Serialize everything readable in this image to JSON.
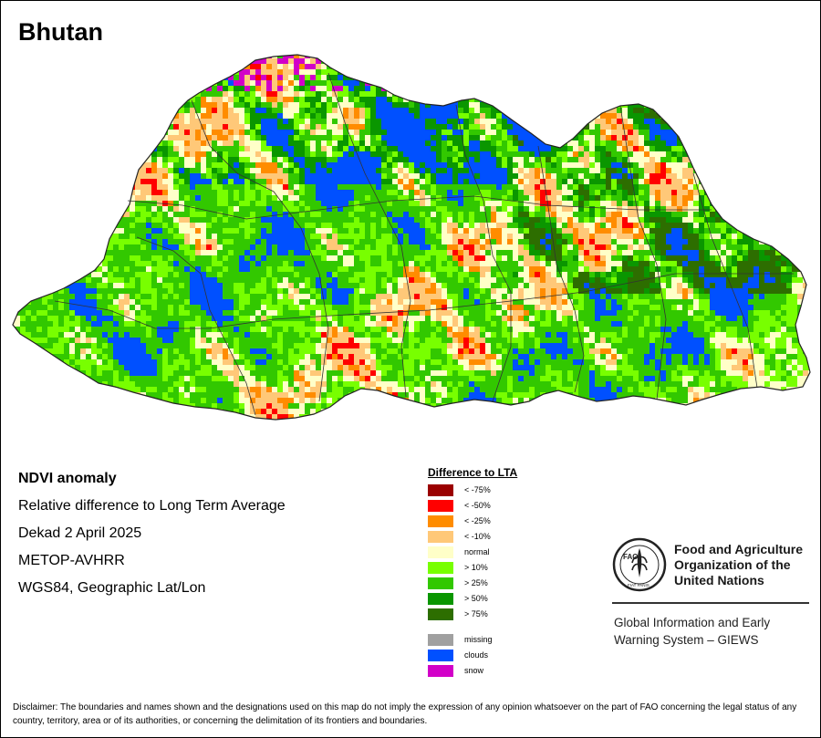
{
  "map": {
    "title": "Bhutan",
    "info": {
      "heading": "NDVI anomaly",
      "subtitle": "Relative difference to Long Term Average",
      "period": "Dekad 2 April 2025",
      "sensor": "METOP-AVHRR",
      "projection": "WGS84, Geographic Lat/Lon"
    },
    "legend": {
      "title": "Difference to LTA",
      "items": [
        {
          "label": "< -75%",
          "color": "#9b0000"
        },
        {
          "label": "< -50%",
          "color": "#ff0000"
        },
        {
          "label": "< -25%",
          "color": "#ff8c00"
        },
        {
          "label": "< -10%",
          "color": "#ffc878"
        },
        {
          "label": "normal",
          "color": "#ffffc8"
        },
        {
          "label": "> 10%",
          "color": "#78ff00"
        },
        {
          "label": "> 25%",
          "color": "#32c800"
        },
        {
          "label": "> 50%",
          "color": "#0a9600"
        },
        {
          "label": "> 75%",
          "color": "#2d6e00"
        }
      ],
      "extra_items": [
        {
          "label": "missing",
          "color": "#a0a0a0"
        },
        {
          "label": "clouds",
          "color": "#0050ff"
        },
        {
          "label": "snow",
          "color": "#d200c8"
        }
      ]
    },
    "organization": {
      "name_lines": [
        "Food and Agriculture",
        "Organization of the",
        "United Nations"
      ],
      "logo_text": "FAO",
      "logo_motto": "FIAT PANIS",
      "system_lines": [
        "Global Information and Early",
        "Warning System – GIEWS"
      ]
    },
    "disclaimer": "Disclaimer: The boundaries and names shown and the designations used on this map do not imply the expression of any opinion whatsoever on the part of FAO concerning the legal status of any country, territory, area or of its authorities, or concerning the delimitation of its frontiers and boundaries."
  }
}
